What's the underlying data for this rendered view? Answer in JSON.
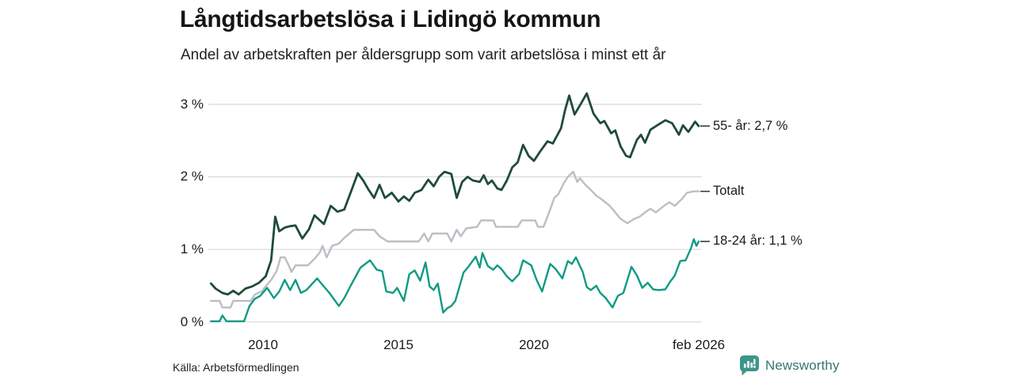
{
  "colors": {
    "background": "#ffffff",
    "grid": "#d8d8d8",
    "end_tick": "#3c3c3c",
    "axis_text": "#1a1a1a",
    "brand_icon": "#3d948a",
    "brand_text": "#35766e"
  },
  "footer": {
    "source": "Källa: Arbetsförmedlingen",
    "brand": "Newsworthy"
  },
  "chart_data": {
    "type": "line",
    "title": "Långtidsarbetslösa i Lidingö kommun",
    "subtitle": "Andel av arbetskraften per åldersgrupp som varit arbetslösa i minst ett år",
    "unit": "%",
    "grid": true,
    "legend_position": "end-of-line-right",
    "x_axis": {
      "range": [
        2008.08,
        2026.25
      ],
      "ticks": [
        {
          "year": 2010,
          "label": "2010"
        },
        {
          "year": 2015,
          "label": "2015"
        },
        {
          "year": 2020,
          "label": "2020"
        },
        {
          "year": 2026.083,
          "label": "feb 2026"
        }
      ]
    },
    "y_axis": {
      "range": [
        0,
        3.3
      ],
      "ticks": [
        {
          "value": 0,
          "label": "0 %"
        },
        {
          "value": 1,
          "label": "1 %"
        },
        {
          "value": 2,
          "label": "2 %"
        },
        {
          "value": 3,
          "label": "3 %"
        }
      ]
    },
    "series": [
      {
        "id": "55-ar",
        "name": "55- år",
        "end_label": "55- år: 2,7 %",
        "end_value": 2.7,
        "color": "#1f4a3d",
        "width": 2.8,
        "points": [
          [
            2008.08,
            0.53
          ],
          [
            2008.25,
            0.46
          ],
          [
            2008.5,
            0.4
          ],
          [
            2008.7,
            0.38
          ],
          [
            2008.9,
            0.43
          ],
          [
            2009.1,
            0.38
          ],
          [
            2009.35,
            0.46
          ],
          [
            2009.6,
            0.49
          ],
          [
            2009.85,
            0.54
          ],
          [
            2010.1,
            0.63
          ],
          [
            2010.3,
            0.85
          ],
          [
            2010.45,
            1.45
          ],
          [
            2010.6,
            1.25
          ],
          [
            2010.8,
            1.3
          ],
          [
            2011.0,
            1.32
          ],
          [
            2011.2,
            1.33
          ],
          [
            2011.45,
            1.15
          ],
          [
            2011.7,
            1.28
          ],
          [
            2011.9,
            1.47
          ],
          [
            2012.1,
            1.4
          ],
          [
            2012.25,
            1.35
          ],
          [
            2012.5,
            1.6
          ],
          [
            2012.75,
            1.52
          ],
          [
            2013.0,
            1.55
          ],
          [
            2013.3,
            1.85
          ],
          [
            2013.5,
            2.05
          ],
          [
            2013.7,
            1.95
          ],
          [
            2013.9,
            1.82
          ],
          [
            2014.1,
            1.71
          ],
          [
            2014.3,
            1.89
          ],
          [
            2014.5,
            1.71
          ],
          [
            2014.75,
            1.78
          ],
          [
            2015.0,
            1.66
          ],
          [
            2015.2,
            1.73
          ],
          [
            2015.4,
            1.67
          ],
          [
            2015.6,
            1.78
          ],
          [
            2015.85,
            1.82
          ],
          [
            2016.1,
            1.96
          ],
          [
            2016.3,
            1.87
          ],
          [
            2016.5,
            2.0
          ],
          [
            2016.7,
            2.07
          ],
          [
            2016.95,
            2.04
          ],
          [
            2017.15,
            1.71
          ],
          [
            2017.35,
            1.93
          ],
          [
            2017.55,
            2.0
          ],
          [
            2017.75,
            1.95
          ],
          [
            2018.0,
            1.93
          ],
          [
            2018.15,
            2.02
          ],
          [
            2018.3,
            1.9
          ],
          [
            2018.45,
            1.95
          ],
          [
            2018.65,
            1.84
          ],
          [
            2018.8,
            1.82
          ],
          [
            2019.0,
            1.95
          ],
          [
            2019.2,
            2.13
          ],
          [
            2019.4,
            2.2
          ],
          [
            2019.6,
            2.44
          ],
          [
            2019.8,
            2.29
          ],
          [
            2020.0,
            2.22
          ],
          [
            2020.25,
            2.36
          ],
          [
            2020.5,
            2.49
          ],
          [
            2020.7,
            2.46
          ],
          [
            2021.0,
            2.67
          ],
          [
            2021.15,
            2.92
          ],
          [
            2021.3,
            3.12
          ],
          [
            2021.5,
            2.86
          ],
          [
            2021.75,
            3.02
          ],
          [
            2021.95,
            3.15
          ],
          [
            2022.2,
            2.87
          ],
          [
            2022.45,
            2.74
          ],
          [
            2022.6,
            2.77
          ],
          [
            2022.85,
            2.6
          ],
          [
            2023.0,
            2.64
          ],
          [
            2023.2,
            2.42
          ],
          [
            2023.4,
            2.29
          ],
          [
            2023.55,
            2.27
          ],
          [
            2023.8,
            2.51
          ],
          [
            2023.95,
            2.58
          ],
          [
            2024.1,
            2.47
          ],
          [
            2024.3,
            2.65
          ],
          [
            2024.55,
            2.71
          ],
          [
            2024.85,
            2.78
          ],
          [
            2025.1,
            2.74
          ],
          [
            2025.35,
            2.58
          ],
          [
            2025.5,
            2.71
          ],
          [
            2025.7,
            2.62
          ],
          [
            2025.95,
            2.76
          ],
          [
            2026.083,
            2.7
          ]
        ]
      },
      {
        "id": "totalt",
        "name": "Totalt",
        "end_label": "Totalt",
        "end_value": 1.8,
        "color": "#bdbdc5",
        "width": 2.4,
        "points": [
          [
            2008.08,
            0.29
          ],
          [
            2008.4,
            0.29
          ],
          [
            2008.5,
            0.2
          ],
          [
            2008.8,
            0.2
          ],
          [
            2008.9,
            0.29
          ],
          [
            2009.55,
            0.29
          ],
          [
            2009.7,
            0.38
          ],
          [
            2009.95,
            0.42
          ],
          [
            2010.1,
            0.49
          ],
          [
            2010.3,
            0.58
          ],
          [
            2010.5,
            0.7
          ],
          [
            2010.65,
            0.89
          ],
          [
            2010.8,
            0.89
          ],
          [
            2010.95,
            0.78
          ],
          [
            2011.05,
            0.69
          ],
          [
            2011.2,
            0.78
          ],
          [
            2011.65,
            0.78
          ],
          [
            2011.9,
            0.87
          ],
          [
            2012.1,
            0.96
          ],
          [
            2012.2,
            1.05
          ],
          [
            2012.35,
            0.89
          ],
          [
            2012.55,
            1.05
          ],
          [
            2012.8,
            1.08
          ],
          [
            2013.0,
            1.16
          ],
          [
            2013.35,
            1.27
          ],
          [
            2014.1,
            1.27
          ],
          [
            2014.3,
            1.18
          ],
          [
            2014.6,
            1.11
          ],
          [
            2015.75,
            1.11
          ],
          [
            2015.95,
            1.22
          ],
          [
            2016.1,
            1.11
          ],
          [
            2016.25,
            1.22
          ],
          [
            2016.8,
            1.22
          ],
          [
            2016.95,
            1.11
          ],
          [
            2017.15,
            1.27
          ],
          [
            2017.3,
            1.18
          ],
          [
            2017.5,
            1.29
          ],
          [
            2017.9,
            1.31
          ],
          [
            2018.05,
            1.4
          ],
          [
            2018.5,
            1.4
          ],
          [
            2018.6,
            1.31
          ],
          [
            2019.4,
            1.31
          ],
          [
            2019.55,
            1.4
          ],
          [
            2020.05,
            1.4
          ],
          [
            2020.15,
            1.31
          ],
          [
            2020.35,
            1.31
          ],
          [
            2020.5,
            1.45
          ],
          [
            2020.75,
            1.71
          ],
          [
            2020.9,
            1.76
          ],
          [
            2021.1,
            1.91
          ],
          [
            2021.25,
            2.0
          ],
          [
            2021.45,
            2.07
          ],
          [
            2021.6,
            1.93
          ],
          [
            2021.7,
            1.98
          ],
          [
            2021.9,
            1.89
          ],
          [
            2022.1,
            1.82
          ],
          [
            2022.3,
            1.74
          ],
          [
            2022.5,
            1.69
          ],
          [
            2022.8,
            1.6
          ],
          [
            2023.0,
            1.51
          ],
          [
            2023.2,
            1.42
          ],
          [
            2023.45,
            1.36
          ],
          [
            2023.7,
            1.42
          ],
          [
            2023.9,
            1.45
          ],
          [
            2024.1,
            1.51
          ],
          [
            2024.3,
            1.56
          ],
          [
            2024.5,
            1.51
          ],
          [
            2024.8,
            1.6
          ],
          [
            2025.0,
            1.65
          ],
          [
            2025.2,
            1.6
          ],
          [
            2025.45,
            1.69
          ],
          [
            2025.65,
            1.78
          ],
          [
            2025.9,
            1.8
          ],
          [
            2026.083,
            1.8
          ]
        ]
      },
      {
        "id": "18-24-ar",
        "name": "18-24 år",
        "end_label": "18-24 år: 1,1 %",
        "end_value": 1.1,
        "color": "#0f9a84",
        "width": 2.4,
        "points": [
          [
            2008.08,
            0.01
          ],
          [
            2008.4,
            0.01
          ],
          [
            2008.5,
            0.09
          ],
          [
            2008.65,
            0.01
          ],
          [
            2009.3,
            0.01
          ],
          [
            2009.5,
            0.22
          ],
          [
            2009.7,
            0.32
          ],
          [
            2009.9,
            0.36
          ],
          [
            2010.15,
            0.47
          ],
          [
            2010.4,
            0.33
          ],
          [
            2010.6,
            0.42
          ],
          [
            2010.8,
            0.58
          ],
          [
            2011.0,
            0.44
          ],
          [
            2011.2,
            0.58
          ],
          [
            2011.4,
            0.4
          ],
          [
            2011.6,
            0.44
          ],
          [
            2011.8,
            0.52
          ],
          [
            2012.0,
            0.6
          ],
          [
            2012.2,
            0.51
          ],
          [
            2012.45,
            0.4
          ],
          [
            2012.8,
            0.22
          ],
          [
            2013.0,
            0.33
          ],
          [
            2013.25,
            0.51
          ],
          [
            2013.6,
            0.75
          ],
          [
            2013.95,
            0.85
          ],
          [
            2014.2,
            0.72
          ],
          [
            2014.4,
            0.7
          ],
          [
            2014.55,
            0.42
          ],
          [
            2014.8,
            0.4
          ],
          [
            2014.95,
            0.47
          ],
          [
            2015.2,
            0.29
          ],
          [
            2015.4,
            0.66
          ],
          [
            2015.6,
            0.71
          ],
          [
            2015.8,
            0.57
          ],
          [
            2016.0,
            0.82
          ],
          [
            2016.15,
            0.49
          ],
          [
            2016.3,
            0.44
          ],
          [
            2016.45,
            0.53
          ],
          [
            2016.65,
            0.13
          ],
          [
            2016.8,
            0.19
          ],
          [
            2016.95,
            0.22
          ],
          [
            2017.1,
            0.29
          ],
          [
            2017.4,
            0.68
          ],
          [
            2017.6,
            0.77
          ],
          [
            2017.85,
            0.9
          ],
          [
            2018.0,
            0.75
          ],
          [
            2018.1,
            0.95
          ],
          [
            2018.3,
            0.77
          ],
          [
            2018.5,
            0.72
          ],
          [
            2018.65,
            0.78
          ],
          [
            2018.8,
            0.73
          ],
          [
            2019.0,
            0.63
          ],
          [
            2019.2,
            0.56
          ],
          [
            2019.45,
            0.66
          ],
          [
            2019.6,
            0.85
          ],
          [
            2019.9,
            0.78
          ],
          [
            2020.1,
            0.58
          ],
          [
            2020.3,
            0.42
          ],
          [
            2020.6,
            0.8
          ],
          [
            2020.8,
            0.73
          ],
          [
            2021.05,
            0.6
          ],
          [
            2021.25,
            0.84
          ],
          [
            2021.4,
            0.8
          ],
          [
            2021.55,
            0.89
          ],
          [
            2021.8,
            0.69
          ],
          [
            2021.95,
            0.48
          ],
          [
            2022.1,
            0.44
          ],
          [
            2022.3,
            0.5
          ],
          [
            2022.45,
            0.4
          ],
          [
            2022.65,
            0.33
          ],
          [
            2022.9,
            0.2
          ],
          [
            2023.1,
            0.36
          ],
          [
            2023.3,
            0.4
          ],
          [
            2023.6,
            0.76
          ],
          [
            2023.8,
            0.64
          ],
          [
            2024.0,
            0.47
          ],
          [
            2024.2,
            0.54
          ],
          [
            2024.4,
            0.45
          ],
          [
            2024.6,
            0.44
          ],
          [
            2024.85,
            0.45
          ],
          [
            2025.0,
            0.54
          ],
          [
            2025.2,
            0.64
          ],
          [
            2025.4,
            0.84
          ],
          [
            2025.6,
            0.85
          ],
          [
            2025.8,
            1.02
          ],
          [
            2025.9,
            1.14
          ],
          [
            2026.0,
            1.05
          ],
          [
            2026.083,
            1.11
          ]
        ]
      }
    ]
  }
}
